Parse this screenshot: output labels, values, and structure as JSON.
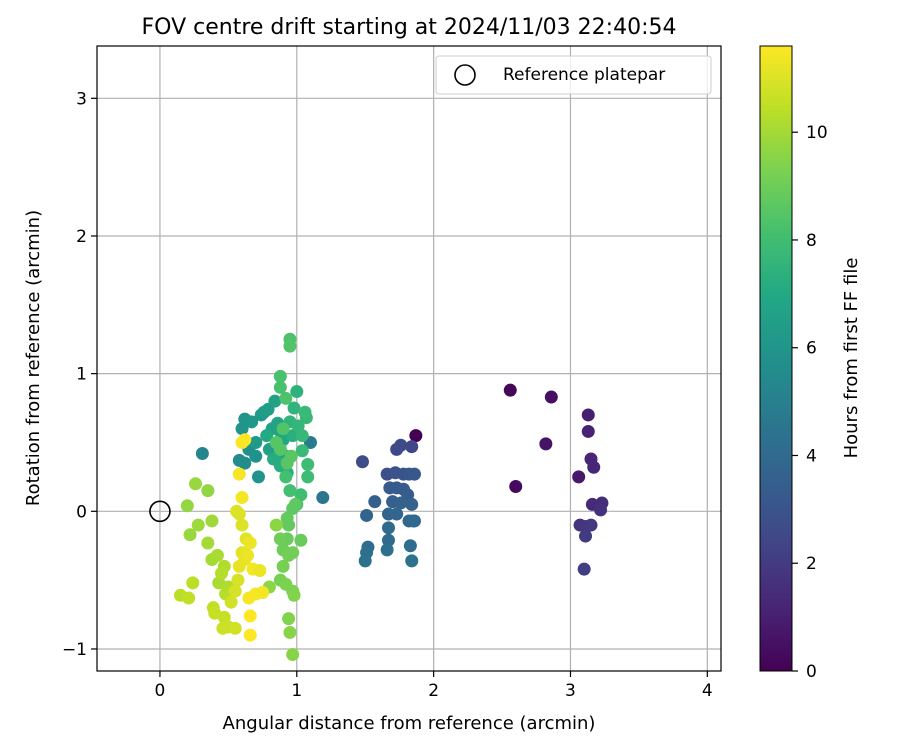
{
  "chart_data": {
    "type": "scatter",
    "title": "FOV centre drift starting at 2024/11/03 22:40:54",
    "xlabel": "Angular distance from reference (arcmin)",
    "ylabel": "Rotation from reference (arcmin)",
    "xlim": [
      -0.46,
      4.1
    ],
    "ylim": [
      -1.16,
      3.38
    ],
    "xticks": [
      0,
      1,
      2,
      3,
      4
    ],
    "yticks": [
      -1,
      0,
      1,
      2,
      3
    ],
    "grid": true,
    "legend": {
      "position": "top-right",
      "entries": [
        "Reference platepar"
      ]
    },
    "reference_point": {
      "x": 0,
      "y": 0
    },
    "colorbar": {
      "label": "Hours from first FF file",
      "colormap": "viridis",
      "range": [
        0,
        11.6
      ],
      "ticks": [
        0,
        2,
        4,
        6,
        8,
        10
      ]
    },
    "points": [
      {
        "x": 1.87,
        "y": 0.55,
        "t": 0.0
      },
      {
        "x": 2.56,
        "y": 0.88,
        "t": 0.2
      },
      {
        "x": 2.6,
        "y": 0.18,
        "t": 0.3
      },
      {
        "x": 2.86,
        "y": 0.83,
        "t": 0.5
      },
      {
        "x": 2.82,
        "y": 0.49,
        "t": 0.6
      },
      {
        "x": 3.06,
        "y": 0.25,
        "t": 0.8
      },
      {
        "x": 3.13,
        "y": 0.7,
        "t": 1.0
      },
      {
        "x": 3.13,
        "y": 0.58,
        "t": 1.1
      },
      {
        "x": 3.15,
        "y": 0.38,
        "t": 1.2
      },
      {
        "x": 3.17,
        "y": 0.32,
        "t": 1.3
      },
      {
        "x": 3.16,
        "y": 0.05,
        "t": 1.4
      },
      {
        "x": 3.23,
        "y": 0.06,
        "t": 1.5
      },
      {
        "x": 3.22,
        "y": 0.01,
        "t": 1.6
      },
      {
        "x": 3.07,
        "y": -0.1,
        "t": 1.7
      },
      {
        "x": 3.11,
        "y": -0.11,
        "t": 1.8
      },
      {
        "x": 3.15,
        "y": -0.1,
        "t": 1.9
      },
      {
        "x": 3.11,
        "y": -0.18,
        "t": 2.0
      },
      {
        "x": 3.1,
        "y": -0.42,
        "t": 2.1
      },
      {
        "x": 1.84,
        "y": 0.47,
        "t": 2.4
      },
      {
        "x": 1.73,
        "y": 0.45,
        "t": 2.5
      },
      {
        "x": 1.76,
        "y": 0.48,
        "t": 2.6
      },
      {
        "x": 1.48,
        "y": 0.36,
        "t": 2.7
      },
      {
        "x": 1.66,
        "y": 0.27,
        "t": 2.8
      },
      {
        "x": 1.72,
        "y": 0.28,
        "t": 2.9
      },
      {
        "x": 1.78,
        "y": 0.27,
        "t": 3.0
      },
      {
        "x": 1.82,
        "y": 0.27,
        "t": 3.1
      },
      {
        "x": 1.86,
        "y": 0.27,
        "t": 3.2
      },
      {
        "x": 1.68,
        "y": 0.17,
        "t": 3.3
      },
      {
        "x": 1.73,
        "y": 0.17,
        "t": 3.3
      },
      {
        "x": 1.78,
        "y": 0.16,
        "t": 3.4
      },
      {
        "x": 1.81,
        "y": 0.12,
        "t": 3.4
      },
      {
        "x": 1.57,
        "y": 0.07,
        "t": 3.5
      },
      {
        "x": 1.7,
        "y": 0.07,
        "t": 3.5
      },
      {
        "x": 1.76,
        "y": 0.06,
        "t": 3.6
      },
      {
        "x": 1.84,
        "y": 0.05,
        "t": 3.6
      },
      {
        "x": 1.67,
        "y": -0.02,
        "t": 3.7
      },
      {
        "x": 1.51,
        "y": -0.03,
        "t": 3.7
      },
      {
        "x": 1.73,
        "y": -0.02,
        "t": 3.8
      },
      {
        "x": 1.82,
        "y": -0.07,
        "t": 3.8
      },
      {
        "x": 1.86,
        "y": -0.07,
        "t": 3.9
      },
      {
        "x": 1.85,
        "y": -0.07,
        "t": 3.9
      },
      {
        "x": 1.67,
        "y": -0.12,
        "t": 4.0
      },
      {
        "x": 1.67,
        "y": -0.21,
        "t": 4.0
      },
      {
        "x": 1.83,
        "y": -0.25,
        "t": 4.1
      },
      {
        "x": 1.52,
        "y": -0.26,
        "t": 4.1
      },
      {
        "x": 1.51,
        "y": -0.3,
        "t": 4.2
      },
      {
        "x": 1.66,
        "y": -0.28,
        "t": 4.2
      },
      {
        "x": 1.5,
        "y": -0.36,
        "t": 4.3
      },
      {
        "x": 1.84,
        "y": -0.36,
        "t": 4.3
      },
      {
        "x": 1.19,
        "y": 0.1,
        "t": 4.5
      },
      {
        "x": 1.1,
        "y": 0.5,
        "t": 4.8
      },
      {
        "x": 0.31,
        "y": 0.42,
        "t": 5.2
      },
      {
        "x": 0.58,
        "y": 0.37,
        "t": 5.5
      },
      {
        "x": 0.62,
        "y": 0.35,
        "t": 5.6
      },
      {
        "x": 0.65,
        "y": 0.45,
        "t": 5.7
      },
      {
        "x": 0.7,
        "y": 0.4,
        "t": 5.8
      },
      {
        "x": 0.72,
        "y": 0.25,
        "t": 5.9
      },
      {
        "x": 0.6,
        "y": 0.6,
        "t": 6.0
      },
      {
        "x": 0.62,
        "y": 0.67,
        "t": 6.0
      },
      {
        "x": 0.67,
        "y": 0.65,
        "t": 6.1
      },
      {
        "x": 0.7,
        "y": 0.5,
        "t": 6.2
      },
      {
        "x": 0.74,
        "y": 0.7,
        "t": 6.3
      },
      {
        "x": 0.76,
        "y": 0.72,
        "t": 6.3
      },
      {
        "x": 0.79,
        "y": 0.74,
        "t": 6.4
      },
      {
        "x": 0.8,
        "y": 0.45,
        "t": 6.5
      },
      {
        "x": 0.82,
        "y": 0.6,
        "t": 6.6
      },
      {
        "x": 0.84,
        "y": 0.8,
        "t": 6.6
      },
      {
        "x": 0.86,
        "y": 0.64,
        "t": 6.7
      },
      {
        "x": 0.88,
        "y": 0.58,
        "t": 6.8
      },
      {
        "x": 0.9,
        "y": 0.52,
        "t": 6.9
      },
      {
        "x": 0.92,
        "y": 0.4,
        "t": 7.0
      },
      {
        "x": 0.78,
        "y": 0.55,
        "t": 7.0
      },
      {
        "x": 0.83,
        "y": 0.38,
        "t": 7.1
      },
      {
        "x": 0.88,
        "y": 0.33,
        "t": 7.2
      },
      {
        "x": 0.93,
        "y": 0.28,
        "t": 7.3
      },
      {
        "x": 0.97,
        "y": 0.55,
        "t": 7.3
      },
      {
        "x": 1.0,
        "y": 0.87,
        "t": 7.4
      },
      {
        "x": 0.98,
        "y": 0.75,
        "t": 7.5
      },
      {
        "x": 0.95,
        "y": 0.65,
        "t": 7.5
      },
      {
        "x": 1.01,
        "y": 0.62,
        "t": 7.6
      },
      {
        "x": 1.04,
        "y": 0.55,
        "t": 7.7
      },
      {
        "x": 1.07,
        "y": 0.68,
        "t": 7.7
      },
      {
        "x": 1.06,
        "y": 0.72,
        "t": 7.8
      },
      {
        "x": 1.04,
        "y": 0.44,
        "t": 7.8
      },
      {
        "x": 1.08,
        "y": 0.34,
        "t": 7.9
      },
      {
        "x": 1.08,
        "y": 0.25,
        "t": 7.9
      },
      {
        "x": 1.03,
        "y": 0.12,
        "t": 8.0
      },
      {
        "x": 1.0,
        "y": 0.05,
        "t": 8.0
      },
      {
        "x": 0.95,
        "y": 0.15,
        "t": 8.1
      },
      {
        "x": 0.92,
        "y": 0.25,
        "t": 8.1
      },
      {
        "x": 0.88,
        "y": 0.9,
        "t": 8.2
      },
      {
        "x": 0.88,
        "y": 0.98,
        "t": 8.2
      },
      {
        "x": 0.92,
        "y": 0.82,
        "t": 8.3
      },
      {
        "x": 0.95,
        "y": 1.25,
        "t": 8.3
      },
      {
        "x": 0.95,
        "y": 1.2,
        "t": 8.4
      },
      {
        "x": 0.9,
        "y": 0.6,
        "t": 8.4
      },
      {
        "x": 0.88,
        "y": 0.45,
        "t": 8.5
      },
      {
        "x": 0.85,
        "y": 0.5,
        "t": 8.5
      },
      {
        "x": 0.93,
        "y": 0.35,
        "t": 8.6
      },
      {
        "x": 0.96,
        "y": 0.4,
        "t": 8.6
      },
      {
        "x": 0.99,
        "y": 0.05,
        "t": 8.7
      },
      {
        "x": 0.97,
        "y": 0.02,
        "t": 8.7
      },
      {
        "x": 0.93,
        "y": -0.05,
        "t": 8.8
      },
      {
        "x": 0.94,
        "y": -0.1,
        "t": 8.8
      },
      {
        "x": 1.03,
        "y": -0.21,
        "t": 8.9
      },
      {
        "x": 0.93,
        "y": -0.2,
        "t": 8.9
      },
      {
        "x": 0.88,
        "y": -0.2,
        "t": 9.0
      },
      {
        "x": 0.9,
        "y": -0.28,
        "t": 9.0
      },
      {
        "x": 0.94,
        "y": -0.32,
        "t": 9.1
      },
      {
        "x": 0.97,
        "y": -0.3,
        "t": 9.1
      },
      {
        "x": 0.9,
        "y": -0.4,
        "t": 9.2
      },
      {
        "x": 0.88,
        "y": -0.5,
        "t": 9.2
      },
      {
        "x": 0.92,
        "y": -0.53,
        "t": 9.3
      },
      {
        "x": 0.97,
        "y": -0.58,
        "t": 9.3
      },
      {
        "x": 0.98,
        "y": -0.61,
        "t": 9.4
      },
      {
        "x": 0.94,
        "y": -0.78,
        "t": 9.4
      },
      {
        "x": 0.95,
        "y": -0.88,
        "t": 9.5
      },
      {
        "x": 0.97,
        "y": -1.04,
        "t": 9.5
      },
      {
        "x": 0.85,
        "y": -0.1,
        "t": 9.6
      },
      {
        "x": 0.8,
        "y": -0.55,
        "t": 9.6
      },
      {
        "x": 0.2,
        "y": 0.04,
        "t": 9.7
      },
      {
        "x": 0.35,
        "y": 0.15,
        "t": 9.7
      },
      {
        "x": 0.26,
        "y": 0.2,
        "t": 9.8
      },
      {
        "x": 0.22,
        "y": -0.17,
        "t": 9.8
      },
      {
        "x": 0.28,
        "y": -0.1,
        "t": 9.9
      },
      {
        "x": 0.38,
        "y": -0.07,
        "t": 9.9
      },
      {
        "x": 0.35,
        "y": -0.23,
        "t": 10.0
      },
      {
        "x": 0.38,
        "y": -0.35,
        "t": 10.0
      },
      {
        "x": 0.42,
        "y": -0.32,
        "t": 10.1
      },
      {
        "x": 0.43,
        "y": -0.52,
        "t": 10.1
      },
      {
        "x": 0.47,
        "y": -0.4,
        "t": 10.2
      },
      {
        "x": 0.5,
        "y": -0.55,
        "t": 10.2
      },
      {
        "x": 0.45,
        "y": -0.45,
        "t": 10.3
      },
      {
        "x": 0.48,
        "y": -0.6,
        "t": 10.3
      },
      {
        "x": 0.24,
        "y": -0.52,
        "t": 10.4
      },
      {
        "x": 0.15,
        "y": -0.61,
        "t": 10.4
      },
      {
        "x": 0.21,
        "y": -0.63,
        "t": 10.5
      },
      {
        "x": 0.39,
        "y": -0.7,
        "t": 10.5
      },
      {
        "x": 0.4,
        "y": -0.74,
        "t": 10.6
      },
      {
        "x": 0.47,
        "y": -0.77,
        "t": 10.6
      },
      {
        "x": 0.46,
        "y": -0.85,
        "t": 10.7
      },
      {
        "x": 0.5,
        "y": -0.84,
        "t": 10.7
      },
      {
        "x": 0.55,
        "y": -0.85,
        "t": 10.8
      },
      {
        "x": 0.52,
        "y": -0.66,
        "t": 10.8
      },
      {
        "x": 0.55,
        "y": -0.58,
        "t": 10.9
      },
      {
        "x": 0.57,
        "y": -0.5,
        "t": 10.9
      },
      {
        "x": 0.58,
        "y": -0.02,
        "t": 11.0
      },
      {
        "x": 0.56,
        "y": 0.0,
        "t": 11.0
      },
      {
        "x": 0.6,
        "y": -0.1,
        "t": 11.0
      },
      {
        "x": 0.63,
        "y": -0.2,
        "t": 11.1
      },
      {
        "x": 0.6,
        "y": -0.3,
        "t": 11.1
      },
      {
        "x": 0.58,
        "y": -0.4,
        "t": 11.2
      },
      {
        "x": 0.62,
        "y": -0.35,
        "t": 11.2
      },
      {
        "x": 0.64,
        "y": -0.32,
        "t": 11.3
      },
      {
        "x": 0.66,
        "y": -0.23,
        "t": 11.3
      },
      {
        "x": 0.68,
        "y": -0.42,
        "t": 11.4
      },
      {
        "x": 0.6,
        "y": 0.1,
        "t": 11.4
      },
      {
        "x": 0.58,
        "y": 0.27,
        "t": 11.5
      },
      {
        "x": 0.6,
        "y": 0.5,
        "t": 11.5
      },
      {
        "x": 0.62,
        "y": 0.52,
        "t": 11.6
      },
      {
        "x": 0.65,
        "y": -0.63,
        "t": 11.5
      },
      {
        "x": 0.66,
        "y": -0.76,
        "t": 11.6
      },
      {
        "x": 0.66,
        "y": -0.9,
        "t": 11.6
      },
      {
        "x": 0.7,
        "y": -0.6,
        "t": 11.5
      },
      {
        "x": 0.75,
        "y": -0.59,
        "t": 11.4
      },
      {
        "x": 0.73,
        "y": -0.43,
        "t": 11.3
      }
    ]
  }
}
